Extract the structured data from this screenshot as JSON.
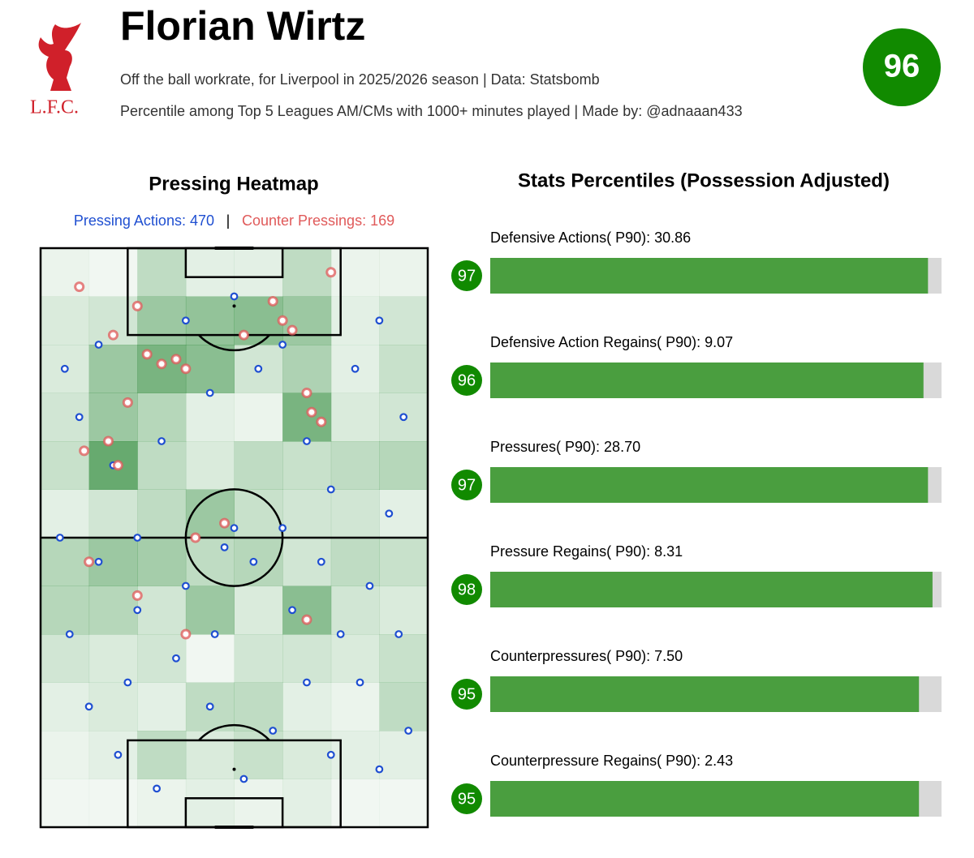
{
  "header": {
    "logo_text": "L.F.C.",
    "title": "Florian Wirtz",
    "subtitle": "Off the ball workrate, for Liverpool in 2025/2026 season | Data: Statsbomb",
    "subtitle2": "Percentile among Top 5 Leagues AM/CMs with 1000+ minutes played | Made by: @adnaaan433",
    "overall": 96,
    "badge_color": "#118a00"
  },
  "chart_data": [
    {
      "type": "heatmap",
      "title": "Pressing Heatmap",
      "separator": "|",
      "xlim": [
        0,
        80
      ],
      "ylim": [
        0,
        120
      ],
      "cell_color": "#2e8b3a",
      "cells": [
        [
          0.05,
          0.02,
          0.3,
          0.1,
          0.1,
          0.3,
          0.05,
          0.05
        ],
        [
          0.15,
          0.2,
          0.5,
          0.55,
          0.6,
          0.5,
          0.1,
          0.2
        ],
        [
          0.15,
          0.5,
          0.7,
          0.6,
          0.2,
          0.4,
          0.1,
          0.25
        ],
        [
          0.2,
          0.5,
          0.35,
          0.1,
          0.05,
          0.7,
          0.15,
          0.2
        ],
        [
          0.25,
          0.8,
          0.3,
          0.15,
          0.3,
          0.25,
          0.3,
          0.35
        ],
        [
          0.1,
          0.2,
          0.3,
          0.5,
          0.25,
          0.2,
          0.2,
          0.1
        ],
        [
          0.35,
          0.5,
          0.45,
          0.3,
          0.35,
          0.2,
          0.3,
          0.25
        ],
        [
          0.35,
          0.35,
          0.2,
          0.5,
          0.15,
          0.6,
          0.2,
          0.15
        ],
        [
          0.2,
          0.15,
          0.2,
          0.02,
          0.2,
          0.2,
          0.15,
          0.25
        ],
        [
          0.1,
          0.15,
          0.1,
          0.3,
          0.3,
          0.1,
          0.05,
          0.3
        ],
        [
          0.05,
          0.1,
          0.3,
          0.15,
          0.25,
          0.15,
          0.1,
          0.1
        ],
        [
          0.02,
          0.02,
          0.05,
          0.1,
          0.05,
          0.1,
          0.02,
          0.02
        ]
      ],
      "series": [
        {
          "name": "Pressing Actions: 470",
          "color": "#1f4fd1",
          "x": [
            5,
            8,
            12,
            15,
            20,
            25,
            30,
            35,
            40,
            45,
            50,
            55,
            60,
            65,
            70,
            75,
            72,
            68,
            62,
            55,
            48,
            42,
            35,
            28,
            20,
            12,
            6,
            10,
            16,
            24,
            30,
            38,
            40,
            44,
            50,
            58,
            66,
            74,
            76,
            70,
            60,
            52,
            36,
            18,
            4
          ],
          "y": [
            95,
            85,
            100,
            75,
            60,
            80,
            105,
            90,
            110,
            95,
            100,
            80,
            70,
            95,
            105,
            85,
            65,
            50,
            40,
            30,
            20,
            10,
            25,
            35,
            45,
            55,
            40,
            25,
            15,
            8,
            50,
            58,
            62,
            55,
            62,
            55,
            30,
            40,
            20,
            12,
            15,
            45,
            40,
            30,
            60
          ]
        },
        {
          "name": "Counter Pressings: 169",
          "color": "#e05a5a",
          "x": [
            8,
            15,
            20,
            22,
            25,
            28,
            30,
            18,
            14,
            16,
            9,
            48,
            50,
            52,
            55,
            56,
            58,
            42,
            38,
            32,
            10,
            30,
            20,
            55,
            60
          ],
          "y": [
            112,
            102,
            108,
            98,
            96,
            97,
            95,
            88,
            80,
            75,
            78,
            109,
            105,
            103,
            90,
            86,
            84,
            102,
            63,
            60,
            55,
            40,
            48,
            43,
            115
          ]
        }
      ]
    },
    {
      "type": "bar",
      "title": "Stats Percentiles (Possession Adjusted)",
      "categories": [
        "Defensive Actions( P90): 30.86",
        "Defensive Action Regains( P90): 9.07",
        "Pressures( P90): 28.70",
        "Pressure Regains( P90): 8.31",
        "Counterpressures( P90): 7.50",
        "Counterpressure Regains( P90): 2.43"
      ],
      "values": [
        97,
        96,
        97,
        98,
        95,
        95
      ],
      "xlim": [
        0,
        100
      ],
      "color": "#4a9e3f",
      "track_color": "#d9d9d9",
      "badge_color": "#118a00"
    }
  ]
}
